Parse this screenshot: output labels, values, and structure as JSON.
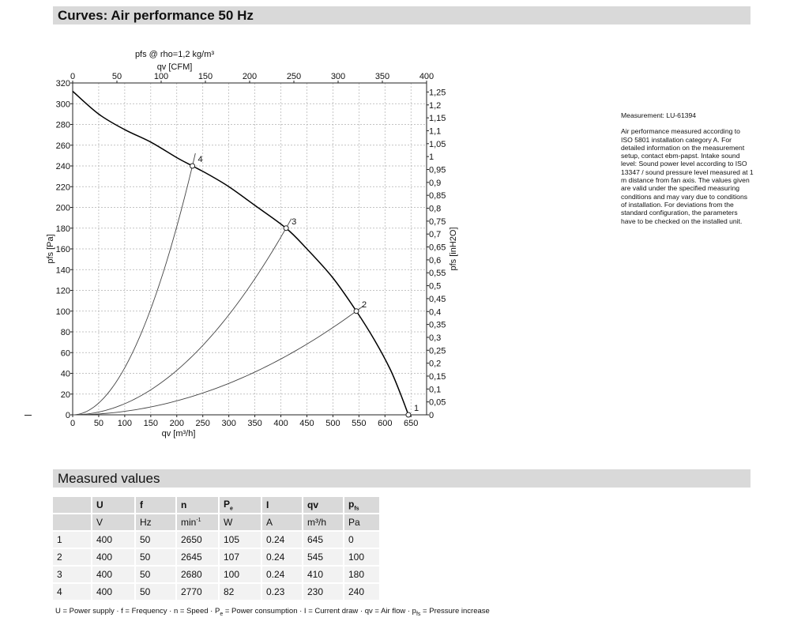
{
  "header": {
    "title": "Curves: Air performance 50 Hz"
  },
  "side_note": {
    "measurement": "Measurement: LU-61394",
    "text": "Air performance measured according to ISO 5801 installation category A. For detailed information on the measurement setup, contact ebm-papst. Intake sound level: Sound power level according to ISO 13347 / sound pressure level measured at 1 m distance from fan axis. The values given are valid under the specified measuring conditions and may vary due to conditions of installation. For deviations from the standard configuration, the parameters have to be checked on the installed unit."
  },
  "measured_values": {
    "title": "Measured values",
    "headers": [
      "",
      "U",
      "f",
      "n",
      "Pe",
      "I",
      "qv",
      "pfs"
    ],
    "units": [
      "",
      "V",
      "Hz",
      "min-1",
      "W",
      "A",
      "m³/h",
      "Pa"
    ],
    "rows": [
      [
        "1",
        "400",
        "50",
        "2650",
        "105",
        "0.24",
        "645",
        "0"
      ],
      [
        "2",
        "400",
        "50",
        "2645",
        "107",
        "0.24",
        "545",
        "100"
      ],
      [
        "3",
        "400",
        "50",
        "2680",
        "100",
        "0.24",
        "410",
        "180"
      ],
      [
        "4",
        "400",
        "50",
        "2770",
        "82",
        "0.23",
        "230",
        "240"
      ]
    ]
  },
  "legend_text": "U = Power supply · f = Frequency · n = Speed · Pe = Power consumption · I = Current draw · qv = Air flow · pfs = Pressure increase",
  "chart_data": {
    "type": "line",
    "title": "pfs @ rho=1,2 kg/m³",
    "xlabel": "qv [m³/h]",
    "ylabel": "pfs [Pa]",
    "x2label": "qv [CFM]",
    "y2label": "pfs [inH2O]",
    "xlim": [
      0,
      680
    ],
    "ylim": [
      0,
      320
    ],
    "x2lim": [
      0,
      400
    ],
    "y2lim": [
      0,
      1.285
    ],
    "xticks": [
      0,
      50,
      100,
      150,
      200,
      250,
      300,
      350,
      400,
      450,
      500,
      550,
      600,
      650
    ],
    "yticks": [
      0,
      20,
      40,
      60,
      80,
      100,
      120,
      140,
      160,
      180,
      200,
      220,
      240,
      260,
      280,
      300,
      320
    ],
    "x2ticks": [
      0,
      50,
      100,
      150,
      200,
      250,
      300,
      350,
      400
    ],
    "y2ticks": [
      "0",
      "0,05",
      "0,1",
      "0,15",
      "0,2",
      "0,25",
      "0,3",
      "0,35",
      "0,4",
      "0,45",
      "0,5",
      "0,55",
      "0,6",
      "0,65",
      "0,7",
      "0,75",
      "0,8",
      "0,85",
      "0,9",
      "0,95",
      "1",
      "1,05",
      "1,1",
      "1,15",
      "1,2",
      "1,25"
    ],
    "grid": true,
    "series": [
      {
        "x": [
          0,
          50,
          100,
          150,
          200,
          230,
          260,
          300,
          350,
          410,
          450,
          500,
          545,
          580,
          610,
          630,
          645
        ],
        "y": [
          312,
          290,
          275,
          263,
          248,
          240,
          232,
          220,
          202,
          180,
          160,
          132,
          100,
          72,
          44,
          20,
          0
        ]
      }
    ],
    "system_curves": [
      {
        "to": [
          230,
          240
        ],
        "k": 0.004537
      },
      {
        "to": [
          410,
          180
        ],
        "k": 0.001071
      },
      {
        "to": [
          545,
          100
        ],
        "k": 0.0003367
      }
    ],
    "operating_points": [
      {
        "label": "1",
        "x": 645,
        "y": 0
      },
      {
        "label": "2",
        "x": 545,
        "y": 100
      },
      {
        "label": "3",
        "x": 410,
        "y": 180
      },
      {
        "label": "4",
        "x": 230,
        "y": 240
      }
    ]
  }
}
